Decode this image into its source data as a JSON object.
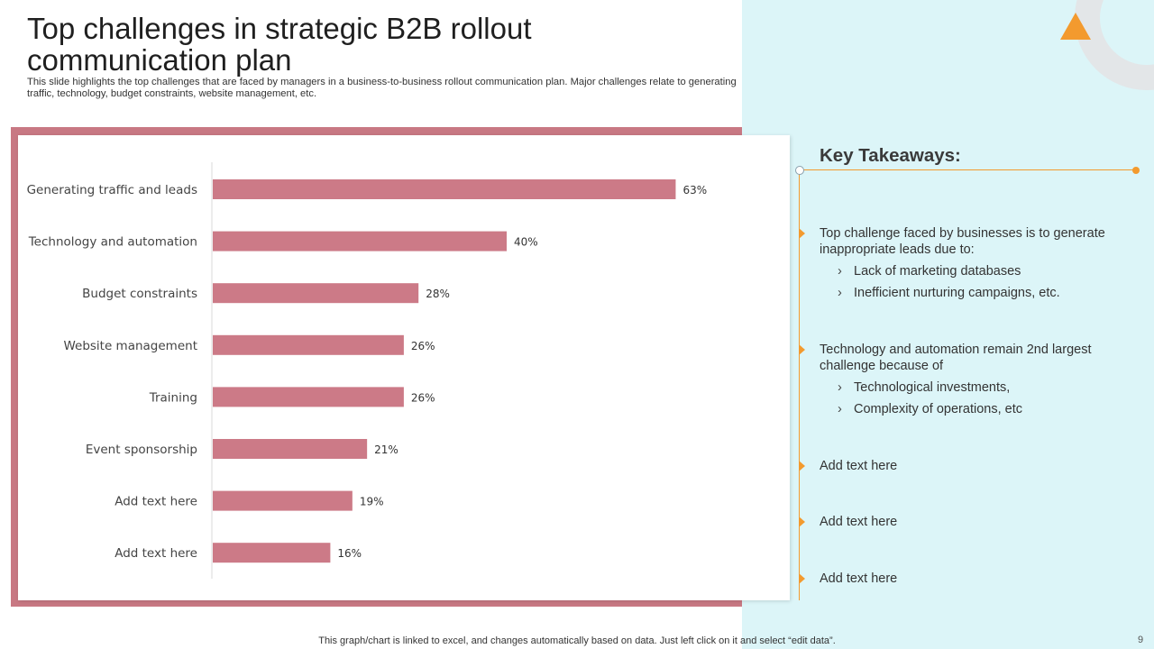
{
  "slide": {
    "title": "Top challenges in strategic B2B rollout communication plan",
    "subtitle": "This slide highlights the top challenges that are faced by managers in a business-to-business rollout communication plan. Major challenges relate to generating traffic, technology, budget constraints, website management, etc.",
    "footer": "This graph/chart is linked to excel, and changes automatically based on data. Just left click on it and select “edit data”.",
    "page_number": "9"
  },
  "colors": {
    "bar": "#cc7a87",
    "accent": "#f39a2e",
    "panel": "#dcf5f8",
    "frame": "#c87883"
  },
  "chart_data": {
    "type": "bar",
    "orientation": "horizontal",
    "categories": [
      "Generating traffic and leads",
      "Technology and automation",
      "Budget constraints",
      "Website management",
      "Training",
      "Event sponsorship",
      "Add text here",
      "Add text here"
    ],
    "values": [
      63,
      40,
      28,
      26,
      26,
      21,
      19,
      16
    ],
    "value_labels": [
      "63%",
      "40%",
      "28%",
      "26%",
      "26%",
      "21%",
      "19%",
      "16%"
    ],
    "xlim": [
      0,
      100
    ],
    "grid": false,
    "legend": "none"
  },
  "takeaways": {
    "title": "Key Takeaways:",
    "items": [
      {
        "text": "Top challenge faced by businesses is to generate inappropriate leads due to:",
        "subitems": [
          "Lack of marketing databases",
          "Inefficient nurturing campaigns, etc."
        ]
      },
      {
        "text": "Technology and automation remain 2nd largest challenge because of",
        "subitems": [
          "Technological investments,",
          "Complexity of operations, etc"
        ]
      },
      {
        "text": "Add text here",
        "subitems": []
      },
      {
        "text": "Add text here",
        "subitems": []
      },
      {
        "text": "Add text here",
        "subitems": []
      }
    ],
    "sub_bullet": "›"
  }
}
